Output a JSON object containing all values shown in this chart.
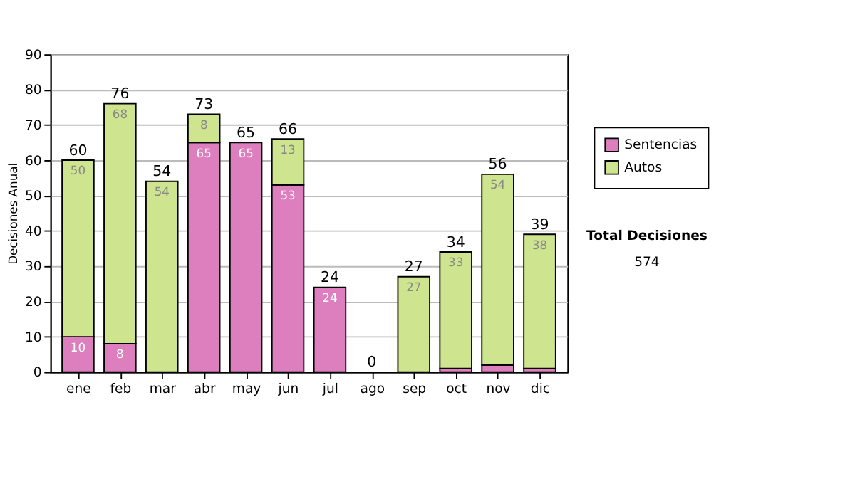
{
  "chart_data": {
    "type": "bar",
    "stacked": true,
    "ylabel": "Decisiones Anual",
    "categories": [
      "ene",
      "feb",
      "mar",
      "abr",
      "may",
      "jun",
      "jul",
      "ago",
      "sep",
      "oct",
      "nov",
      "dic"
    ],
    "series": [
      {
        "name": "Sentencias",
        "color": "#dd7ebf",
        "values": [
          10,
          8,
          0,
          65,
          65,
          53,
          24,
          0,
          0,
          1,
          2,
          1
        ],
        "value_labels": [
          "10",
          "8",
          null,
          "65",
          "65",
          "53",
          "24",
          null,
          null,
          null,
          null,
          null
        ]
      },
      {
        "name": "Autos",
        "color": "#cfe48f",
        "values": [
          50,
          68,
          54,
          8,
          0,
          13,
          0,
          0,
          27,
          33,
          54,
          38
        ],
        "value_labels": [
          "50",
          "68",
          "54",
          "8",
          null,
          "13",
          null,
          null,
          "27",
          "33",
          "54",
          "38"
        ]
      }
    ],
    "totals": [
      "60",
      "76",
      "54",
      "73",
      "65",
      "66",
      "24",
      "0",
      "27",
      "34",
      "56",
      "39"
    ],
    "ylim": [
      0,
      90
    ],
    "yticks": [
      0,
      10,
      20,
      30,
      40,
      50,
      60,
      70,
      80,
      90
    ],
    "grid": "y",
    "legend": "right",
    "annotations": [
      "Total Decisiones",
      "574"
    ]
  }
}
